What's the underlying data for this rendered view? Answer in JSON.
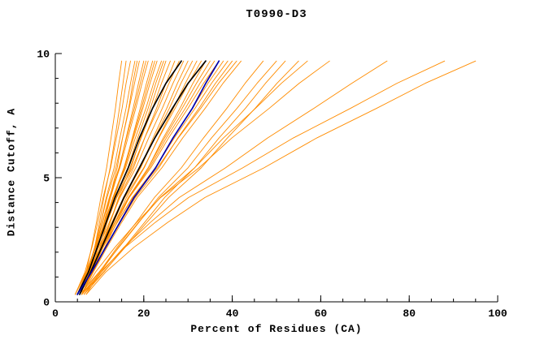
{
  "chart_data": {
    "type": "line",
    "title": "T0990-D3",
    "xlabel": "Percent of Residues (CA)",
    "ylabel": "Distance Cutoff, A",
    "xlim": [
      0,
      100
    ],
    "ylim": [
      0,
      10
    ],
    "x_major_ticks": [
      0,
      20,
      40,
      60,
      80,
      100
    ],
    "x_minor_step": 5,
    "y_major_ticks": [
      0,
      5,
      10
    ],
    "y_minor_step": 1,
    "grid": false,
    "legend": "none",
    "palette": {
      "ensemble": "#ff8c00",
      "highlight": "#000000",
      "reference": "#0000b0"
    },
    "y_samples": [
      0.3,
      1.2,
      2.2,
      3.2,
      4.2,
      5.4,
      6.6,
      7.8,
      8.8,
      9.7
    ],
    "series": [
      {
        "role": "ensemble",
        "x": [
          5,
          7,
          8.2,
          9.3,
          10.3,
          11.6,
          12.6,
          13.6,
          14.3,
          15
        ]
      },
      {
        "role": "ensemble",
        "x": [
          5.5,
          7.6,
          8.9,
          10,
          11,
          12.4,
          13.5,
          14.5,
          15.3,
          16
        ]
      },
      {
        "role": "ensemble",
        "x": [
          4.5,
          6.7,
          8.3,
          9.6,
          10.8,
          12.5,
          13.8,
          15.1,
          16,
          17
        ]
      },
      {
        "role": "ensemble",
        "x": [
          5,
          7.3,
          8.9,
          10.3,
          11.5,
          13.3,
          14.6,
          16,
          17,
          18
        ]
      },
      {
        "role": "ensemble",
        "x": [
          6,
          8.2,
          9.7,
          11.1,
          12.3,
          14,
          15.2,
          16.6,
          17.5,
          18.5
        ]
      },
      {
        "role": "ensemble",
        "x": [
          5,
          7.2,
          8.9,
          10.3,
          11.7,
          13.7,
          15.2,
          16.7,
          17.9,
          19
        ]
      },
      {
        "role": "ensemble",
        "x": [
          5.5,
          7.8,
          9.5,
          11,
          12.5,
          14.5,
          16,
          17.6,
          18.8,
          20
        ]
      },
      {
        "role": "ensemble",
        "x": [
          4.5,
          7,
          9,
          10.6,
          12.2,
          14.4,
          16.1,
          17.9,
          19.2,
          20.5
        ]
      },
      {
        "role": "ensemble",
        "x": [
          5,
          7.3,
          9.1,
          10.7,
          12.3,
          14.6,
          16.4,
          18.2,
          19.6,
          21
        ]
      },
      {
        "role": "ensemble",
        "x": [
          6,
          8.3,
          10.1,
          11.7,
          13.3,
          15.6,
          17.4,
          19.2,
          20.6,
          22
        ]
      },
      {
        "role": "ensemble",
        "x": [
          5,
          7.5,
          9.4,
          11.3,
          13,
          15.5,
          17.5,
          19.5,
          21,
          22.5
        ]
      },
      {
        "role": "ensemble",
        "x": [
          5.5,
          7.7,
          9.6,
          11.4,
          13.2,
          15.7,
          17.7,
          19.8,
          21.4,
          23
        ]
      },
      {
        "role": "ensemble",
        "x": [
          4.5,
          7,
          9.1,
          11.1,
          13,
          15.9,
          18.1,
          20.5,
          22.2,
          24
        ]
      },
      {
        "role": "ensemble",
        "x": [
          5,
          7.5,
          9.6,
          11.6,
          13.5,
          16.4,
          18.6,
          21,
          22.7,
          24.5
        ]
      },
      {
        "role": "ensemble",
        "x": [
          6,
          8.4,
          10.5,
          12.4,
          14.3,
          17.1,
          19.3,
          21.5,
          23.3,
          25
        ]
      },
      {
        "role": "ensemble",
        "x": [
          5,
          7.4,
          9.6,
          11.7,
          13.8,
          16.9,
          19.4,
          22,
          24,
          26
        ]
      },
      {
        "role": "ensemble",
        "x": [
          5.5,
          7.9,
          10.2,
          12.4,
          14.5,
          17.7,
          20.2,
          22.9,
          25,
          27
        ]
      },
      {
        "role": "ensemble",
        "x": [
          4.5,
          6.9,
          9.2,
          11.6,
          13.9,
          17.4,
          20.2,
          23.3,
          25.7,
          28
        ]
      },
      {
        "role": "ensemble",
        "x": [
          5,
          7.4,
          9.8,
          12.2,
          14.6,
          18.2,
          21.1,
          24.2,
          26.6,
          29
        ]
      },
      {
        "role": "ensemble",
        "x": [
          6,
          8.4,
          10.8,
          13.2,
          15.6,
          19.2,
          22.1,
          25.2,
          27.6,
          30
        ]
      },
      {
        "role": "ensemble",
        "x": [
          5,
          7.6,
          10.2,
          12.8,
          15.4,
          19.3,
          22.4,
          25.8,
          28.4,
          31
        ]
      },
      {
        "role": "ensemble",
        "x": [
          5.5,
          8.2,
          10.8,
          13.5,
          16.1,
          20.1,
          23.3,
          26.7,
          29.4,
          32
        ]
      },
      {
        "role": "ensemble",
        "x": [
          5,
          7.5,
          10.2,
          12.9,
          15.7,
          20,
          23.4,
          27.1,
          30.1,
          33
        ]
      },
      {
        "role": "ensemble",
        "x": [
          6,
          8.5,
          11.2,
          13.9,
          16.7,
          21,
          24.4,
          28.2,
          31.1,
          34
        ]
      },
      {
        "role": "ensemble",
        "x": [
          5,
          7.7,
          10.6,
          13.5,
          16.5,
          21,
          24.7,
          28.7,
          31.9,
          35
        ]
      },
      {
        "role": "ensemble",
        "x": [
          5.5,
          7.9,
          10.7,
          13.6,
          16.6,
          21.3,
          25.1,
          29.4,
          32.7,
          36
        ]
      },
      {
        "role": "ensemble",
        "x": [
          5,
          7.5,
          10.4,
          13.5,
          16.7,
          21.6,
          25.6,
          30,
          33.5,
          37
        ]
      },
      {
        "role": "ensemble",
        "x": [
          6,
          8.5,
          11.4,
          14.5,
          17.7,
          22.6,
          26.6,
          31,
          34.5,
          38
        ]
      },
      {
        "role": "ensemble",
        "x": [
          5,
          7.7,
          10.8,
          14,
          17.4,
          22.6,
          26.9,
          31.6,
          35.3,
          39
        ]
      },
      {
        "role": "ensemble",
        "x": [
          5.5,
          8.2,
          11.4,
          14.7,
          18.1,
          23.4,
          27.7,
          32.5,
          36.2,
          40
        ]
      },
      {
        "role": "ensemble",
        "x": [
          5,
          7.6,
          10.7,
          14,
          17.5,
          23.1,
          27.8,
          32.9,
          36.9,
          41
        ]
      },
      {
        "role": "ensemble",
        "x": [
          6,
          8.6,
          11.7,
          15,
          18.5,
          24.1,
          28.8,
          33.9,
          37.9,
          42
        ]
      },
      {
        "role": "ensemble",
        "x": [
          6,
          10,
          14,
          18.3,
          22.4,
          28.5,
          33.5,
          38.8,
          42.9,
          47
        ]
      },
      {
        "role": "ensemble",
        "x": [
          5.5,
          9.9,
          14.4,
          18.9,
          23.3,
          30,
          35.3,
          41.1,
          45.6,
          50
        ]
      },
      {
        "role": "ensemble",
        "x": [
          6.5,
          11,
          15.6,
          20.2,
          24.7,
          31.5,
          37,
          43,
          47.5,
          52
        ]
      },
      {
        "role": "ensemble",
        "x": [
          6,
          10.9,
          15.8,
          20.7,
          25.6,
          33,
          38.9,
          45.2,
          50.1,
          55
        ]
      },
      {
        "role": "ensemble",
        "x": [
          7,
          10.2,
          14.3,
          18.8,
          23.7,
          31.5,
          38,
          45.3,
          51.1,
          57
        ]
      },
      {
        "role": "ensemble",
        "x": [
          6,
          9.1,
          13.5,
          18.4,
          23.8,
          32.5,
          39.9,
          48.4,
          55.1,
          62
        ]
      },
      {
        "role": "ensemble",
        "x": [
          6,
          10.5,
          15.5,
          21.5,
          28,
          38.5,
          48,
          58.5,
          67,
          75
        ]
      },
      {
        "role": "ensemble",
        "x": [
          6.5,
          10.2,
          15.8,
          22.6,
          30.1,
          42.4,
          53.8,
          66.8,
          77.2,
          88
        ]
      },
      {
        "role": "ensemble",
        "x": [
          7,
          11.4,
          17.8,
          25.4,
          33.8,
          47.2,
          59.1,
          72.7,
          83.6,
          95
        ]
      },
      {
        "role": "highlight",
        "x": [
          5,
          7.5,
          9.5,
          11.5,
          13.5,
          16.5,
          19,
          22,
          25,
          28.5
        ]
      },
      {
        "role": "highlight",
        "x": [
          5.5,
          8,
          10.5,
          13,
          15.5,
          19,
          22.5,
          26.5,
          30,
          34
        ]
      },
      {
        "role": "reference",
        "x": [
          5,
          8.2,
          11.4,
          14.6,
          17.8,
          22.7,
          26.6,
          31,
          34,
          37
        ]
      }
    ]
  }
}
